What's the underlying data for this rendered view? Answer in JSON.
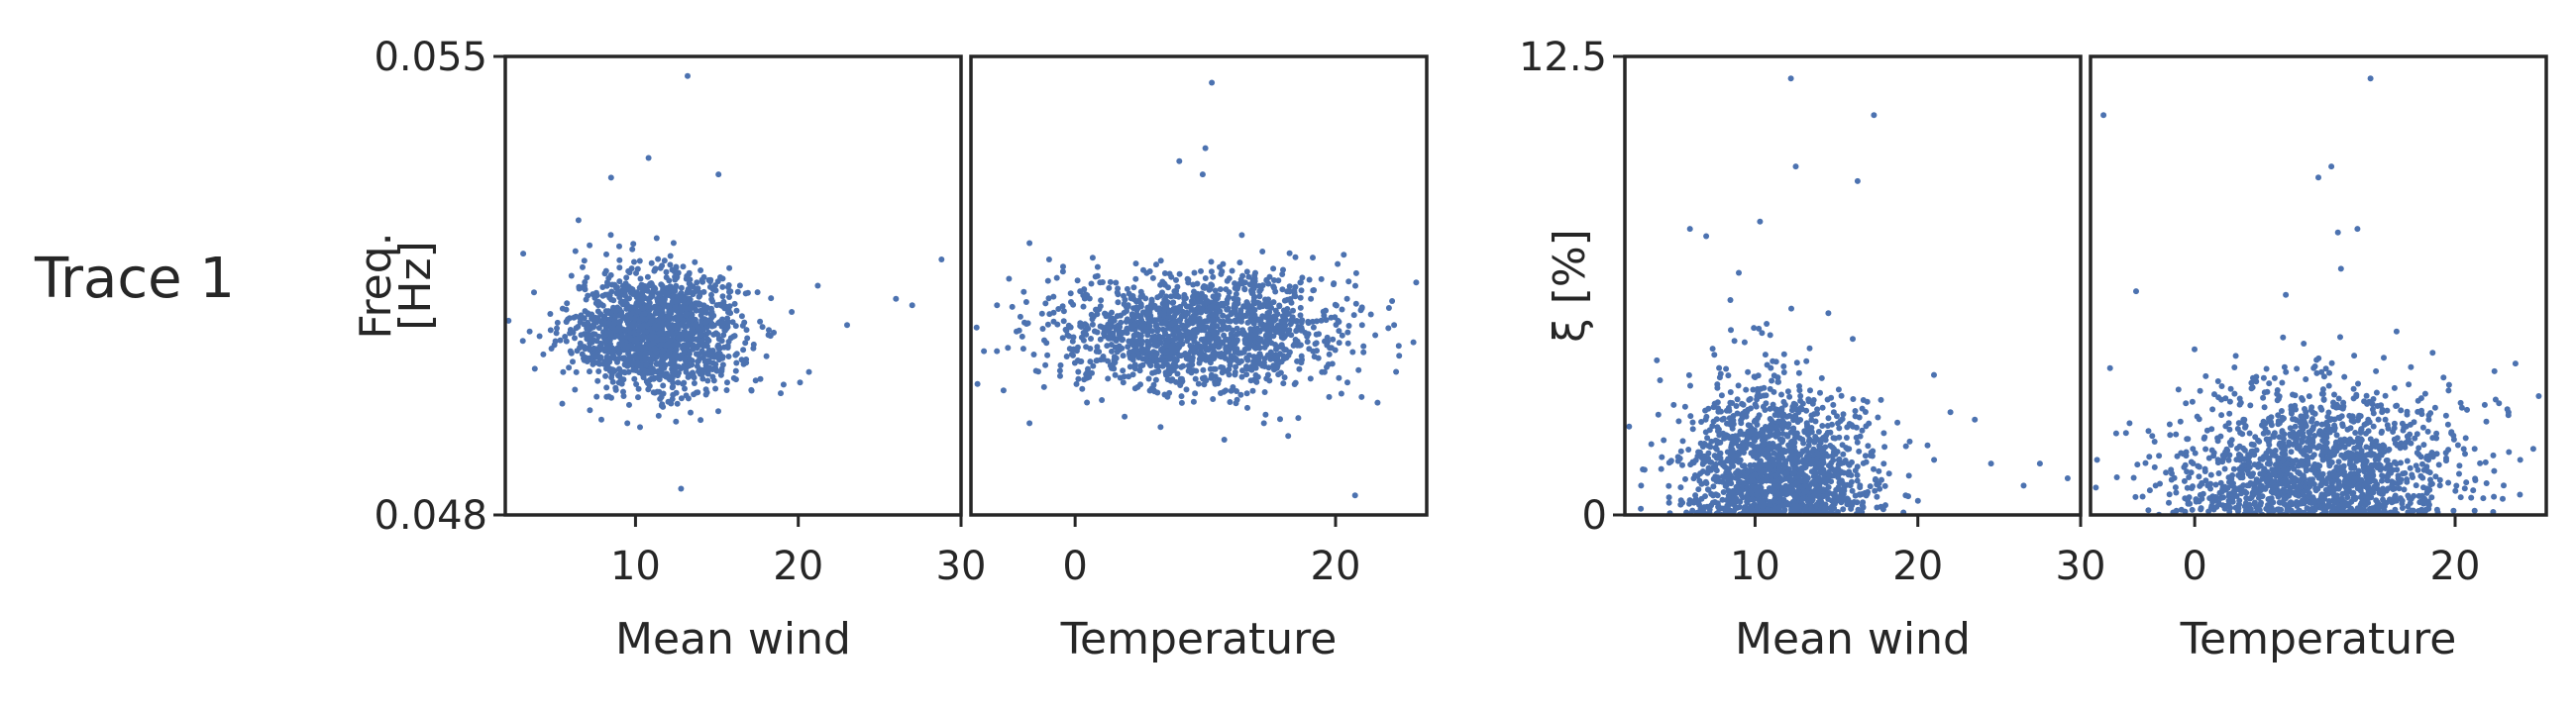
{
  "row_label": "Trace 1",
  "colors": {
    "point": "#4c72b0",
    "axis": "#262626",
    "text": "#262626"
  },
  "chart_data": [
    {
      "type": "scatter",
      "group": "frequency",
      "title": "",
      "xlabel": "Mean wind",
      "ylabel": "Freq.\n[Hz]",
      "xlim": [
        2,
        30
      ],
      "ylim": [
        0.048,
        0.055
      ],
      "xticks": [
        10,
        20,
        30
      ],
      "yticks": [
        0.048,
        0.055
      ],
      "ytick_labels": [
        "0.048",
        "0.055"
      ],
      "grid": false,
      "series": [
        {
          "distribution": {
            "x_mean": 11.3,
            "x_sd": 2.6,
            "y_mean": 0.0508,
            "y_sd": 0.00045,
            "n": 1500
          },
          "x": [
            3.5,
            5.5,
            8.5,
            10.8,
            13.2,
            15.1,
            12.8,
            7.2,
            9.5,
            14.0,
            19.6,
            21.2,
            23.0,
            26.0,
            27.0,
            28.8,
            17.5,
            6.5,
            11.4,
            9.0
          ],
          "y": [
            0.0508,
            0.0497,
            0.05315,
            0.05345,
            0.0547,
            0.0532,
            0.0484,
            0.0496,
            0.0494,
            0.04945,
            0.0511,
            0.0515,
            0.0509,
            0.0513,
            0.0512,
            0.0519,
            0.0514,
            0.0525,
            0.0501,
            0.0521
          ]
        }
      ]
    },
    {
      "type": "scatter",
      "group": "frequency",
      "title": "",
      "xlabel": "Temperature",
      "ylabel": "",
      "xlim": [
        -8,
        27
      ],
      "ylim": [
        0.048,
        0.055
      ],
      "xticks": [
        0,
        20
      ],
      "yticks": [],
      "grid": false,
      "series": [
        {
          "distribution": {
            "x_mean": 9.5,
            "x_sd": 5.5,
            "y_mean": 0.0508,
            "y_sd": 0.00045,
            "n": 1500
          },
          "x": [
            -7.0,
            -6.0,
            -4.5,
            -3.0,
            -5.5,
            -7.5,
            -3.5,
            -2.0,
            10.5,
            10.0,
            8.0,
            9.8,
            21.5,
            14.5,
            22.0,
            24.5,
            3.8,
            -3.5
          ],
          "y": [
            0.0505,
            0.0512,
            0.0508,
            0.0502,
            0.0499,
            0.05,
            0.0494,
            0.0519,
            0.0546,
            0.0536,
            0.0534,
            0.0532,
            0.0483,
            0.0494,
            0.0498,
            0.0509,
            0.0495,
            0.05215
          ]
        }
      ]
    },
    {
      "type": "scatter",
      "group": "damping",
      "title": "",
      "xlabel": "Mean wind",
      "ylabel": "ξ [%]",
      "xlim": [
        2,
        30
      ],
      "ylim": [
        0,
        12.5
      ],
      "xticks": [
        10,
        20,
        30
      ],
      "yticks": [
        0,
        12.5
      ],
      "ytick_labels": [
        "0",
        "12.5"
      ],
      "grid": false,
      "series": [
        {
          "distribution": {
            "x_mean": 11.3,
            "x_sd": 2.8,
            "y_mean": 0.9,
            "y_sd": 1.2,
            "n": 1500
          },
          "x": [
            12.2,
            17.3,
            12.5,
            16.3,
            6.0,
            7.0,
            10.3,
            9.0,
            22.0,
            23.5,
            24.5,
            26.5,
            27.5,
            29.2,
            19.5,
            21.0,
            3.0,
            5.0,
            14.5,
            16.0
          ],
          "y": [
            11.9,
            10.9,
            9.5,
            9.1,
            7.8,
            7.6,
            8.0,
            6.6,
            2.8,
            2.6,
            1.4,
            0.8,
            1.4,
            1.0,
            2.0,
            1.5,
            0.8,
            3.0,
            5.5,
            4.8
          ]
        }
      ]
    },
    {
      "type": "scatter",
      "group": "damping",
      "title": "",
      "xlabel": "Temperature",
      "ylabel": "",
      "xlim": [
        -8,
        27
      ],
      "ylim": [
        0,
        12.5
      ],
      "xticks": [
        0,
        20
      ],
      "yticks": [],
      "grid": false,
      "series": [
        {
          "distribution": {
            "x_mean": 9.5,
            "x_sd": 5.5,
            "y_mean": 0.9,
            "y_sd": 1.2,
            "n": 1500
          },
          "x": [
            -7.0,
            -4.5,
            13.5,
            10.5,
            9.5,
            12.5,
            11.0,
            -6.5,
            -7.5,
            -5.0,
            -4.0,
            -3.0,
            21.5,
            23.0,
            25.0,
            26.0,
            15.5,
            7.0
          ],
          "y": [
            10.9,
            6.1,
            11.9,
            9.5,
            9.2,
            7.8,
            7.7,
            4.0,
            1.5,
            2.5,
            0.5,
            0.8,
            1.8,
            1.2,
            1.5,
            1.8,
            5.0,
            6.0
          ]
        }
      ]
    }
  ]
}
